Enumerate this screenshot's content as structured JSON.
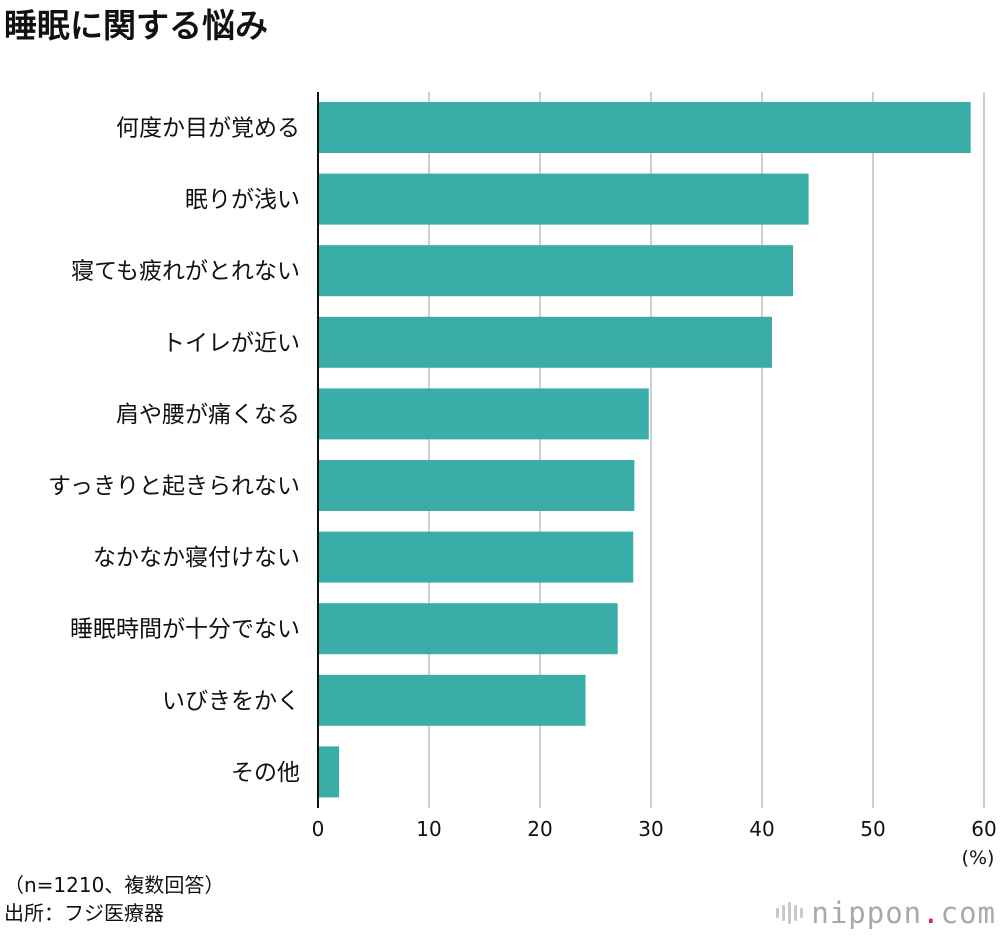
{
  "chart_data": {
    "type": "bar",
    "orientation": "horizontal",
    "title": "睡眠に関する悩み",
    "categories": [
      "何度か目が覚める",
      "眠りが浅い",
      "寝ても疲れがとれない",
      "トイレが近い",
      "肩や腰が痛くなる",
      "すっきりと起きられない",
      "なかなか寝付けない",
      "睡眠時間が十分でない",
      "いびきをかく",
      "その他"
    ],
    "values": [
      58.8,
      44.2,
      42.8,
      40.9,
      29.8,
      28.5,
      28.4,
      27.0,
      24.1,
      1.9
    ],
    "xlim": [
      0,
      60
    ],
    "xticks": [
      0,
      10,
      20,
      30,
      40,
      50,
      60
    ],
    "xlabel": "(%)",
    "ylabel": "",
    "grid": true,
    "bar_color": "#3aada9",
    "grid_color": "#cfcfcf",
    "axis_color": "#111111"
  },
  "notes": {
    "sample": "（n=1210、複数回答）",
    "source": "出所：フジ医療器"
  },
  "logo": {
    "name": "nippon",
    "dot": ".",
    "suffix": "com",
    "icon": "nippon-logo-icon"
  }
}
